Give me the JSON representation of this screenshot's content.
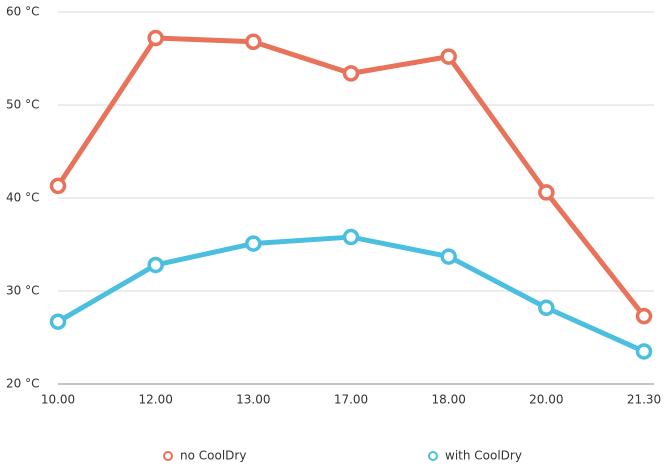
{
  "chart_data": {
    "type": "line",
    "categories": [
      "10.00",
      "12.00",
      "13.00",
      "17.00",
      "18.00",
      "20.00",
      "21.30"
    ],
    "series": [
      {
        "name": "no CoolDry",
        "color": "#e8735a",
        "values": [
          41.3,
          57.2,
          56.8,
          53.4,
          55.2,
          40.6,
          27.3
        ]
      },
      {
        "name": "with CoolDry",
        "color": "#4bbfe0",
        "values": [
          26.7,
          32.8,
          35.1,
          35.8,
          33.7,
          28.2,
          23.5
        ]
      }
    ],
    "ylim": [
      20,
      60
    ],
    "yticks": [
      {
        "value": 20,
        "label": "20 °C"
      },
      {
        "value": 30,
        "label": "30 °C"
      },
      {
        "value": 40,
        "label": "40 °C"
      },
      {
        "value": 50,
        "label": "50 °C"
      },
      {
        "value": 60,
        "label": "60 °C"
      }
    ],
    "grid": true,
    "legend": "bottom"
  }
}
